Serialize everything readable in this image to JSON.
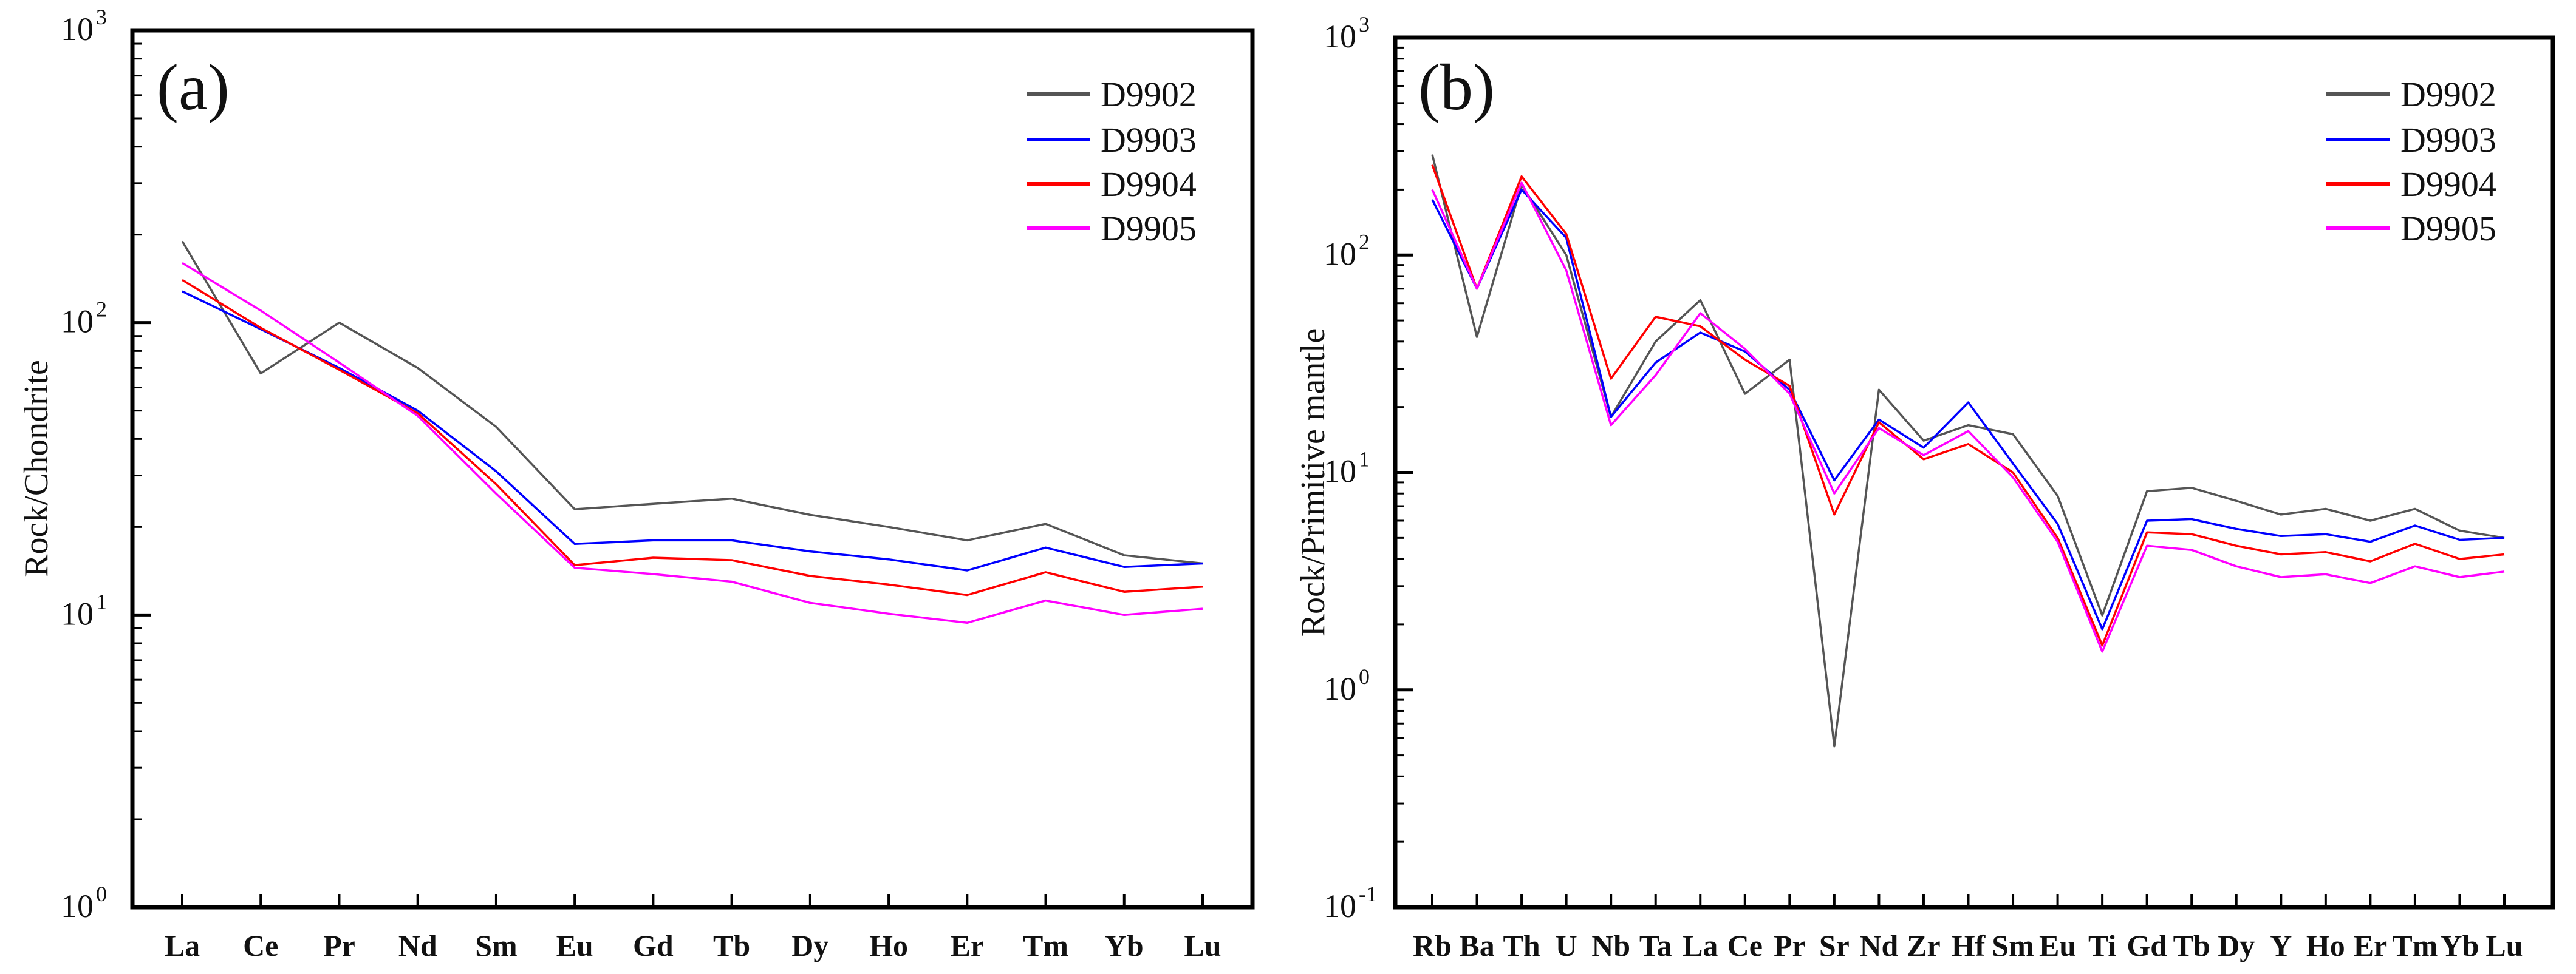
{
  "chart_data": [
    {
      "type": "line",
      "panel_label": "(a)",
      "ylabel": "Rock/Chondrite",
      "yscale": "log",
      "ylim": [
        1,
        1000
      ],
      "ytick_base": "10",
      "ytick_exponents": [
        "0",
        "1",
        "2",
        "3"
      ],
      "legend_position": "top-right",
      "categories": [
        "La",
        "Ce",
        "Pr",
        "Nd",
        "Sm",
        "Eu",
        "Gd",
        "Tb",
        "Dy",
        "Ho",
        "Er",
        "Tm",
        "Yb",
        "Lu"
      ],
      "series": [
        {
          "name": "D9902",
          "color": "#555555",
          "values": [
            190,
            67,
            100,
            70,
            44,
            23,
            24,
            25,
            22,
            20,
            18,
            20.5,
            16,
            15
          ]
        },
        {
          "name": "D9903",
          "color": "#0000ff",
          "values": [
            128,
            95,
            70,
            50,
            31,
            17.5,
            18,
            18,
            16.5,
            15.5,
            14.2,
            17,
            14.6,
            15
          ]
        },
        {
          "name": "D9904",
          "color": "#ff0000",
          "values": [
            140,
            96,
            69,
            49,
            28,
            14.8,
            15.7,
            15.4,
            13.6,
            12.7,
            11.7,
            14,
            12,
            12.5
          ]
        },
        {
          "name": "D9905",
          "color": "#ff00ff",
          "values": [
            160,
            110,
            73,
            48,
            26,
            14.5,
            13.8,
            13,
            11,
            10.1,
            9.4,
            11.2,
            10,
            10.5
          ]
        }
      ]
    },
    {
      "type": "line",
      "panel_label": "(b)",
      "ylabel": "Rock/Primitive mantle",
      "yscale": "log",
      "ylim": [
        0.1,
        1000
      ],
      "ytick_base": "10",
      "ytick_exponents": [
        "-1",
        "0",
        "1",
        "2",
        "3"
      ],
      "legend_position": "top-right",
      "categories": [
        "Rb",
        "Ba",
        "Th",
        "U",
        "Nb",
        "Ta",
        "La",
        "Ce",
        "Pr",
        "Sr",
        "Nd",
        "Zr",
        "Hf",
        "Sm",
        "Eu",
        "Ti",
        "Gd",
        "Tb",
        "Dy",
        "Y",
        "Ho",
        "Er",
        "Tm",
        "Yb",
        "Lu"
      ],
      "series": [
        {
          "name": "D9902",
          "color": "#555555",
          "values": [
            290,
            42,
            210,
            100,
            18,
            40,
            62,
            23,
            33,
            0.55,
            24,
            14,
            16.5,
            15,
            7.8,
            2.2,
            8.2,
            8.5,
            7.4,
            6.4,
            6.8,
            6,
            6.8,
            5.4,
            5
          ]
        },
        {
          "name": "D9903",
          "color": "#0000ff",
          "values": [
            180,
            70,
            200,
            120,
            18,
            32,
            44,
            36,
            24,
            9.2,
            17.5,
            13,
            21,
            11,
            5.8,
            1.9,
            6,
            6.1,
            5.5,
            5.1,
            5.2,
            4.8,
            5.7,
            4.9,
            5
          ]
        },
        {
          "name": "D9904",
          "color": "#ff0000",
          "values": [
            260,
            70,
            230,
            125,
            27,
            52,
            47,
            33,
            25,
            6.4,
            17,
            11.5,
            13.5,
            10,
            5,
            1.6,
            5.3,
            5.2,
            4.6,
            4.2,
            4.3,
            3.9,
            4.7,
            4,
            4.2
          ]
        },
        {
          "name": "D9905",
          "color": "#ff00ff",
          "values": [
            200,
            70,
            215,
            85,
            16.5,
            28,
            54,
            37,
            23,
            8,
            16,
            12,
            15.5,
            9.5,
            4.8,
            1.5,
            4.6,
            4.4,
            3.7,
            3.3,
            3.4,
            3.1,
            3.7,
            3.3,
            3.5
          ]
        }
      ]
    }
  ]
}
